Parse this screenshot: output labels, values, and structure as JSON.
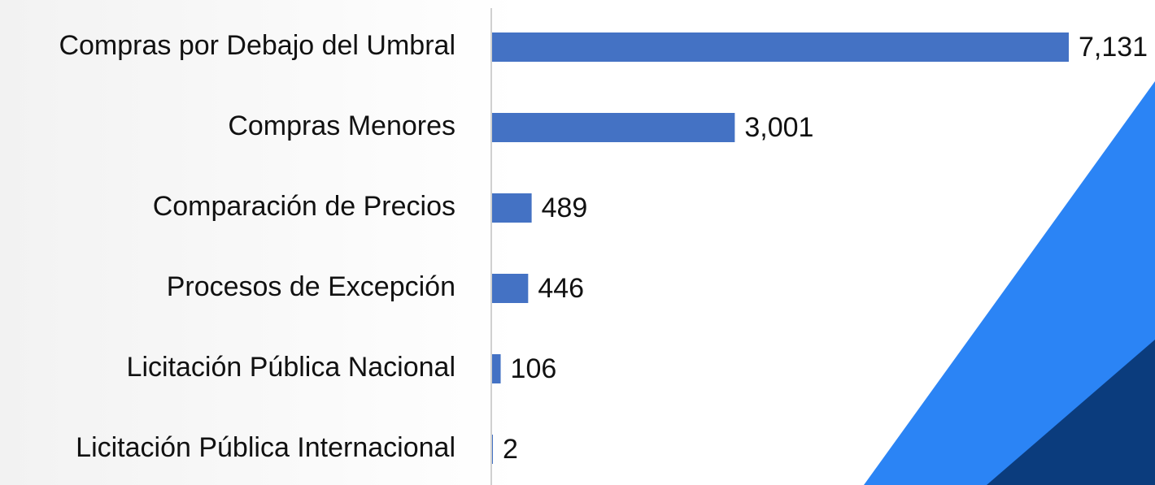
{
  "chart_data": {
    "type": "hbar",
    "categories": [
      "Compras por Debajo del Umbral",
      "Compras Menores",
      "Comparación de Precios",
      "Procesos de Excepción",
      "Licitación Pública Nacional",
      "Licitación Pública Internacional"
    ],
    "values": [
      7131,
      3001,
      489,
      446,
      106,
      2
    ],
    "value_labels": [
      "7,131",
      "3,001",
      "489",
      "446",
      "106",
      "2"
    ],
    "color": "#4472c4"
  }
}
